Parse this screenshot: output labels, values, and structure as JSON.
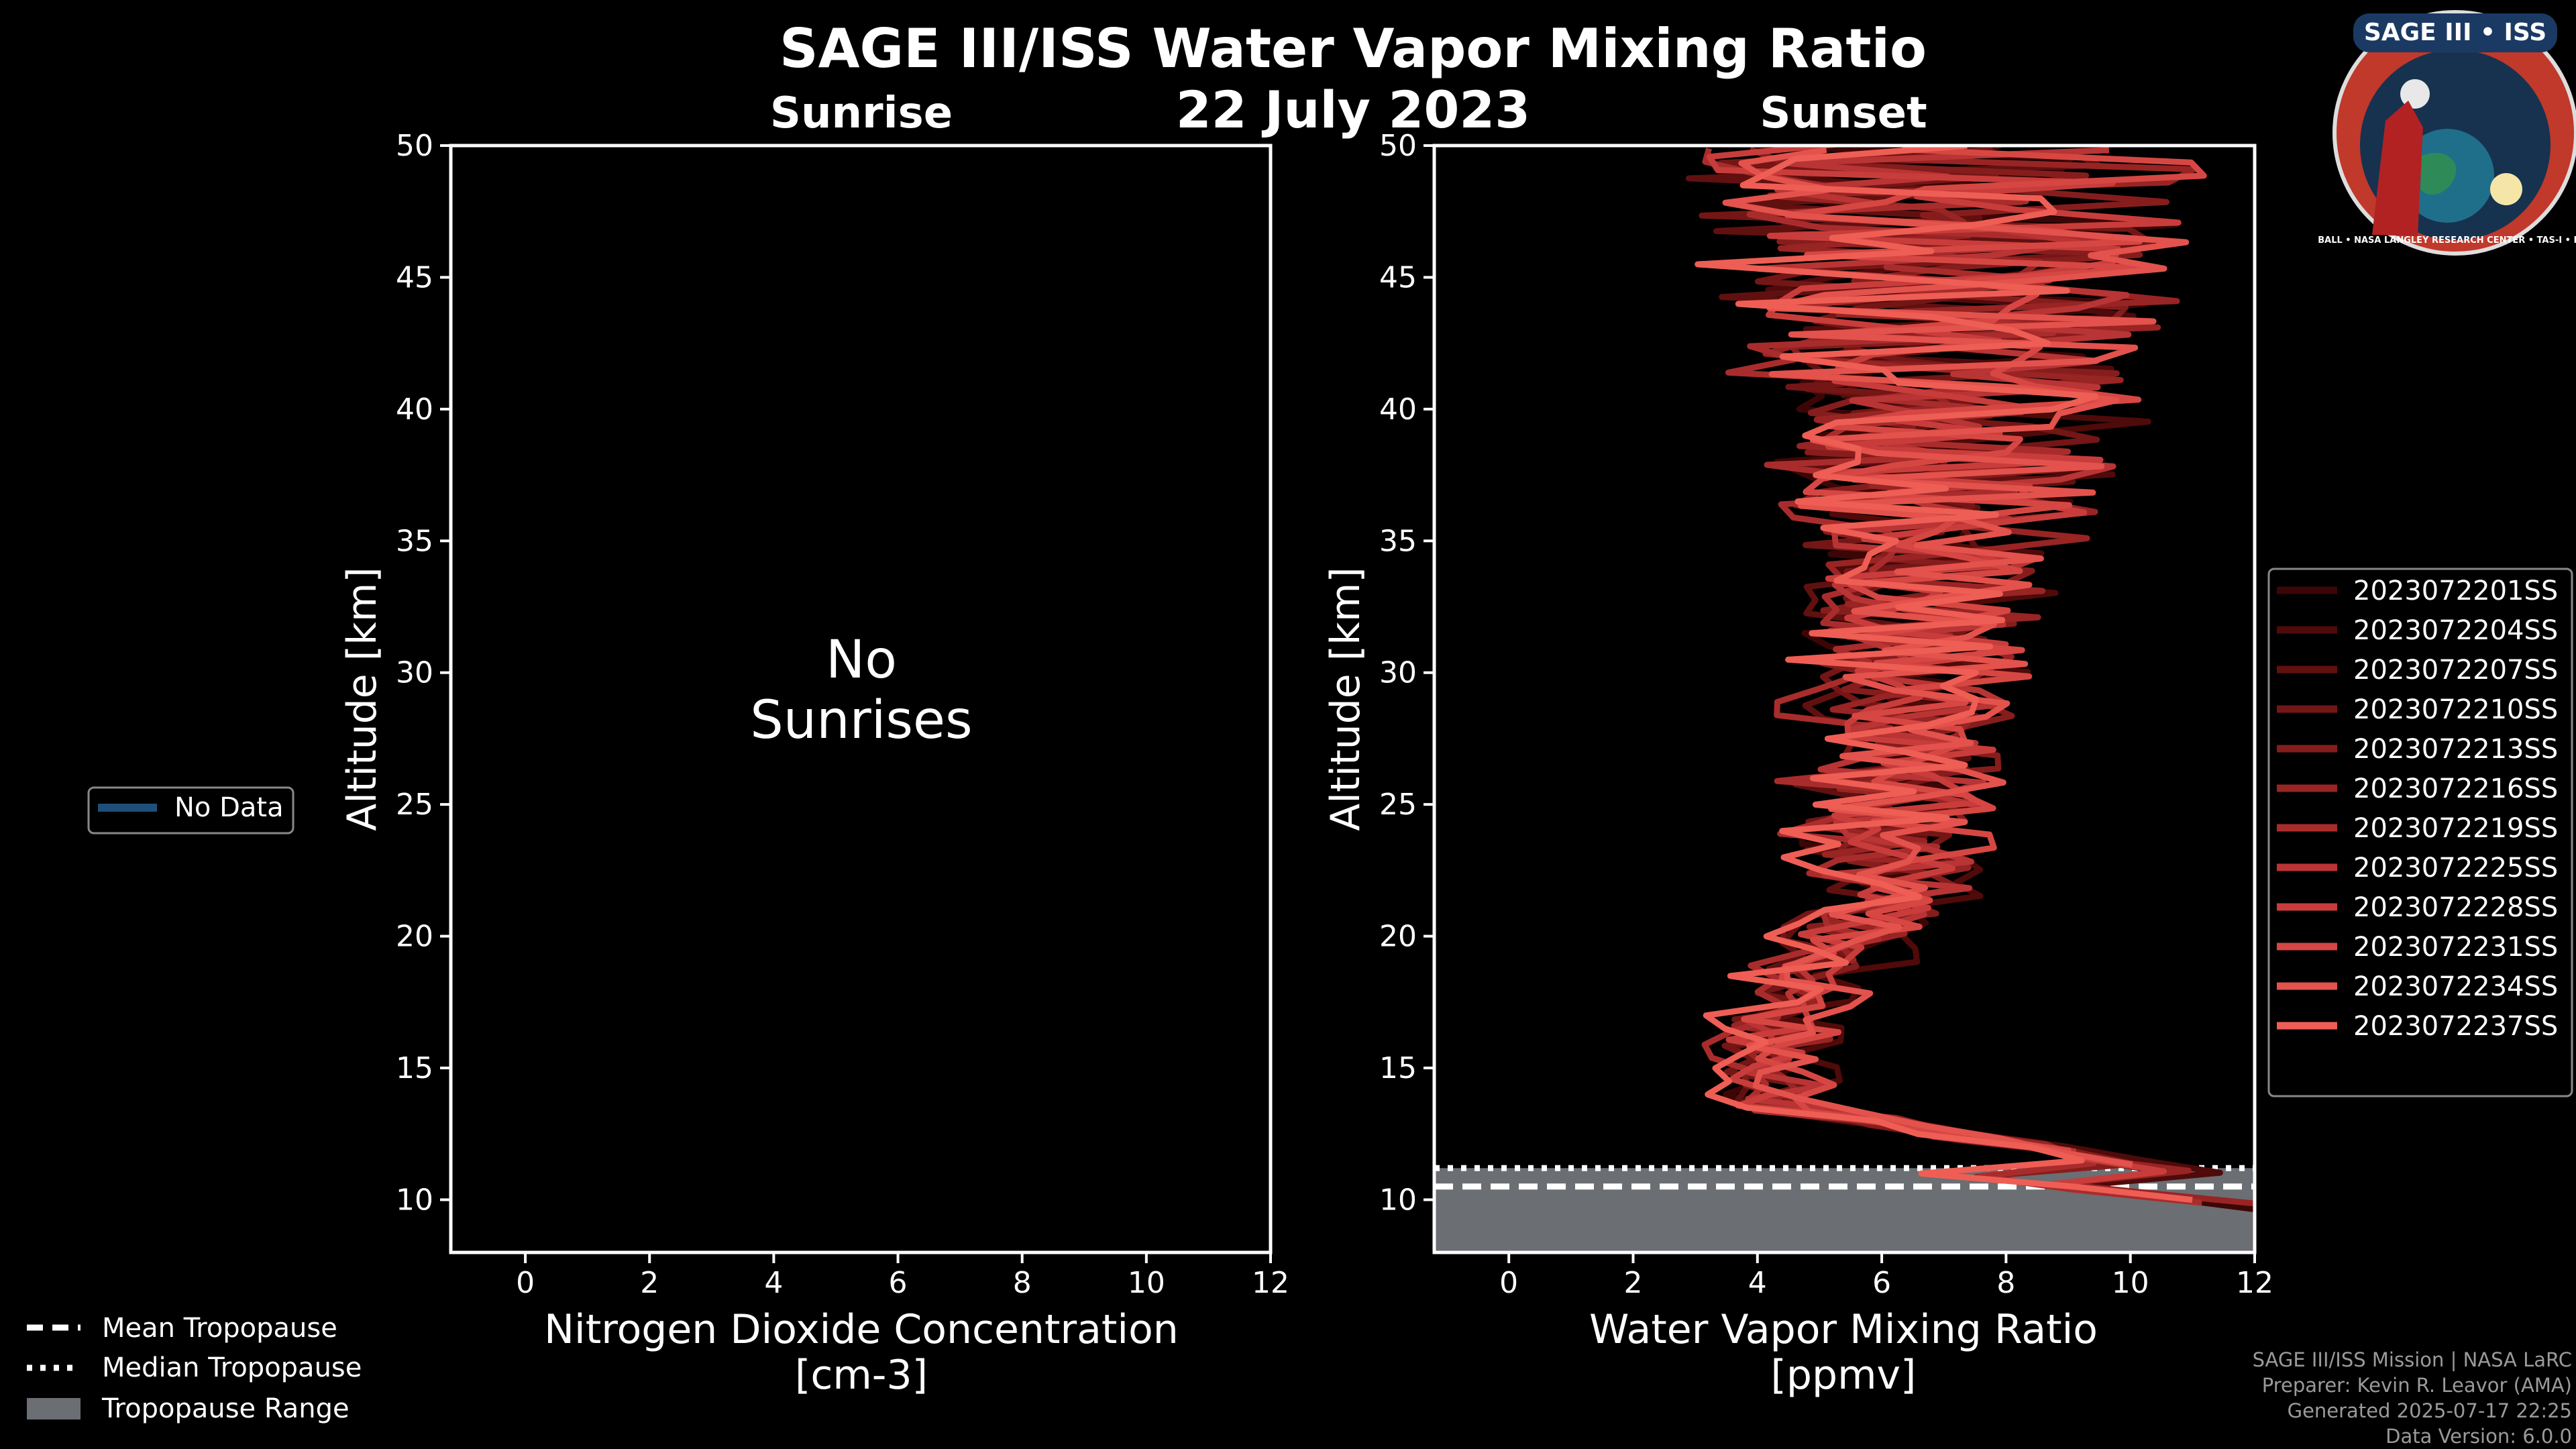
{
  "title": "SAGE III/ISS Water Vapor Mixing Ratio",
  "date": "22 July 2023",
  "logo": {
    "text": "SAGE III • ISS",
    "ring_text": "BALL • NASA LANGLEY RESEARCH CENTER • TAS-I • ESA",
    "colors": {
      "ring": "#c0392b",
      "inner": "#16324f",
      "ring_bg": "#1b3a63"
    }
  },
  "left_legend": {
    "no_data_label": "No Data",
    "color": "#1f4e79"
  },
  "tropo_legend": {
    "mean": "Mean Tropopause",
    "median": "Median Tropopause",
    "range": "Tropopause Range",
    "range_color": "#6b6e72"
  },
  "footer": {
    "line1": "SAGE III/ISS Mission | NASA LaRC",
    "line2": "Preparer: Kevin R. Leavor (AMA)",
    "line3": "Generated 2025-07-17 22:25",
    "line4": "Data Version: 6.0.0"
  },
  "chart_data": [
    {
      "type": "line",
      "subtitle": "Sunrise",
      "xlabel_line1": "Nitrogen Dioxide Concentration",
      "xlabel_line2": "[cm-3]",
      "ylabel": "Altitude [km]",
      "xlim": [
        -1.2,
        12
      ],
      "ylim": [
        8,
        50
      ],
      "xticks": [
        0,
        2,
        4,
        6,
        8,
        10,
        12
      ],
      "yticks": [
        10,
        15,
        20,
        25,
        30,
        35,
        40,
        45,
        50
      ],
      "message_line1": "No",
      "message_line2": "Sunrises",
      "series": []
    },
    {
      "type": "line",
      "subtitle": "Sunset",
      "xlabel_line1": "Water Vapor Mixing Ratio",
      "xlabel_line2": "[ppmv]",
      "ylabel": "Altitude [km]",
      "xlim": [
        -1.2,
        12
      ],
      "ylim": [
        8,
        50
      ],
      "xticks": [
        0,
        2,
        4,
        6,
        8,
        10,
        12
      ],
      "yticks": [
        10,
        15,
        20,
        25,
        30,
        35,
        40,
        45,
        50
      ],
      "tropopause": {
        "mean_km": 10.5,
        "median_km": 11.2,
        "range_km": [
          8,
          11.2
        ]
      },
      "series": [
        {
          "name": "2023072201SS",
          "color": "#3d0606"
        },
        {
          "name": "2023072204SS",
          "color": "#4f0a0a"
        },
        {
          "name": "2023072207SS",
          "color": "#611010"
        },
        {
          "name": "2023072210SS",
          "color": "#741616"
        },
        {
          "name": "2023072213SS",
          "color": "#861d1d"
        },
        {
          "name": "2023072216SS",
          "color": "#982424"
        },
        {
          "name": "2023072219SS",
          "color": "#a92c2c"
        },
        {
          "name": "2023072225SS",
          "color": "#b93434"
        },
        {
          "name": "2023072228SS",
          "color": "#c83d3b"
        },
        {
          "name": "2023072231SS",
          "color": "#d64743"
        },
        {
          "name": "2023072234SS",
          "color": "#e3524c"
        },
        {
          "name": "2023072237SS",
          "color": "#ee5e55"
        }
      ]
    }
  ]
}
